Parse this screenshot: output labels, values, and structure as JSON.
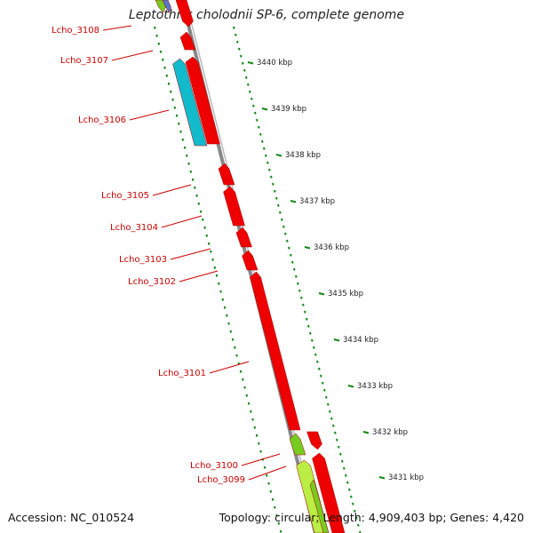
{
  "title": "Leptothrix cholodnii SP-6, complete genome",
  "footer": {
    "accession": "Accession: NC_010524",
    "topology": "Topology: circular; Length: 4,909,403 bp; Genes: 4,420"
  },
  "colors": {
    "gene_red": "#ee0000",
    "gene_cyan": "#11bbcc",
    "gene_green": "#77cc22",
    "gene_lightgreen": "#bbee44",
    "backbone": "#888888",
    "tick_green": "#118811",
    "label_red": "#cc0000"
  },
  "kbp_ticks": [
    "3440 kbp",
    "3439 kbp",
    "3438 kbp",
    "3437 kbp",
    "3436 kbp",
    "3435 kbp",
    "3434 kbp",
    "3433 kbp",
    "3432 kbp",
    "3431 kbp"
  ],
  "gene_labels": [
    "Lcho_3108",
    "Lcho_3107",
    "Lcho_3106",
    "Lcho_3105",
    "Lcho_3104",
    "Lcho_3103",
    "Lcho_3102",
    "Lcho_3101",
    "Lcho_3100",
    "Lcho_3099"
  ]
}
